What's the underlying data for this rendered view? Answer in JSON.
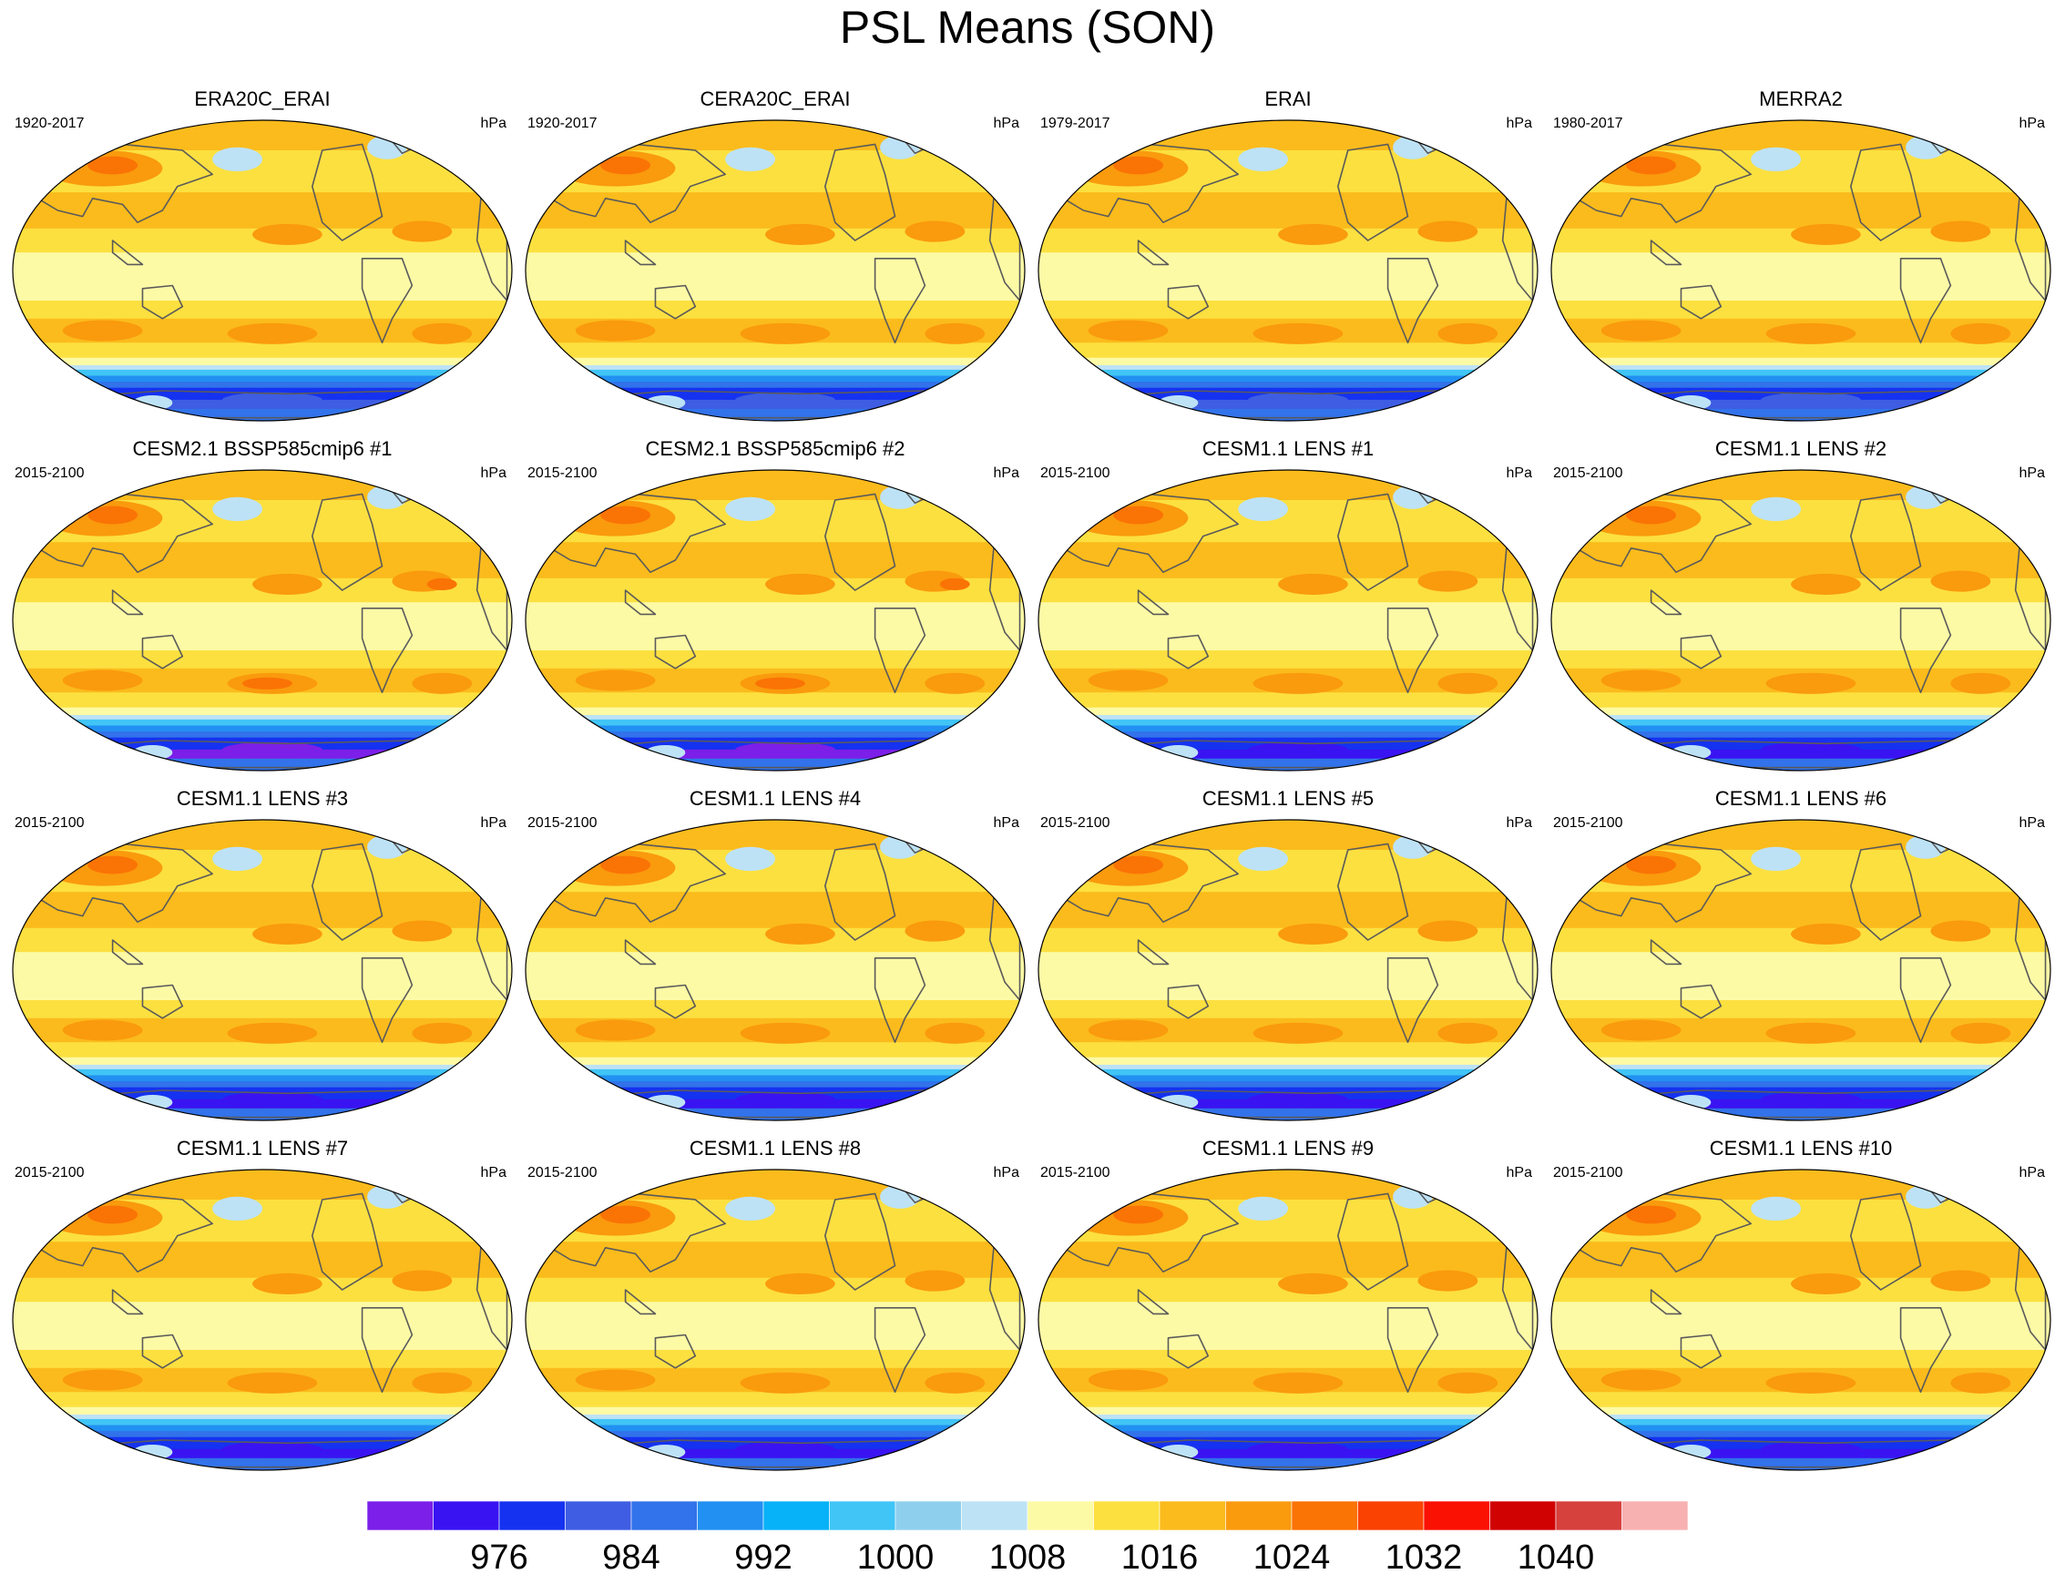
{
  "title": "PSL Means (SON)",
  "units": "hPa",
  "panels": [
    {
      "title": "ERA20C_ERAI",
      "period": "1920-2017",
      "variant": "reanalysis"
    },
    {
      "title": "CERA20C_ERAI",
      "period": "1920-2017",
      "variant": "reanalysis"
    },
    {
      "title": "ERAI",
      "period": "1979-2017",
      "variant": "reanalysis"
    },
    {
      "title": "MERRA2",
      "period": "1980-2017",
      "variant": "reanalysis"
    },
    {
      "title": "CESM2.1 BSSP585cmip6 #1",
      "period": "2015-2100",
      "variant": "cesm2"
    },
    {
      "title": "CESM2.1 BSSP585cmip6 #2",
      "period": "2015-2100",
      "variant": "cesm2"
    },
    {
      "title": "CESM1.1 LENS #1",
      "period": "2015-2100",
      "variant": "lens"
    },
    {
      "title": "CESM1.1 LENS #2",
      "period": "2015-2100",
      "variant": "lens"
    },
    {
      "title": "CESM1.1 LENS #3",
      "period": "2015-2100",
      "variant": "lens"
    },
    {
      "title": "CESM1.1 LENS #4",
      "period": "2015-2100",
      "variant": "lens"
    },
    {
      "title": "CESM1.1 LENS #5",
      "period": "2015-2100",
      "variant": "lens"
    },
    {
      "title": "CESM1.1 LENS #6",
      "period": "2015-2100",
      "variant": "lens"
    },
    {
      "title": "CESM1.1 LENS #7",
      "period": "2015-2100",
      "variant": "lens"
    },
    {
      "title": "CESM1.1 LENS #8",
      "period": "2015-2100",
      "variant": "lens"
    },
    {
      "title": "CESM1.1 LENS #9",
      "period": "2015-2100",
      "variant": "lens"
    },
    {
      "title": "CESM1.1 LENS #10",
      "period": "2015-2100",
      "variant": "lens"
    }
  ],
  "colorbar": {
    "colors": [
      "#7c1fe8",
      "#3a13f2",
      "#1532f0",
      "#3e5de3",
      "#3272ea",
      "#2290f2",
      "#08b2f8",
      "#40c5f6",
      "#8fcfee",
      "#bde2f6",
      "#fdfaa6",
      "#fce040",
      "#fbbb1c",
      "#fa9a0d",
      "#fa7305",
      "#fa4202",
      "#fb1004",
      "#d10202",
      "#d6403d",
      "#f8b1b1"
    ],
    "tick_labels": [
      "976",
      "984",
      "992",
      "1000",
      "1008",
      "1016",
      "1024",
      "1032",
      "1040"
    ]
  }
}
